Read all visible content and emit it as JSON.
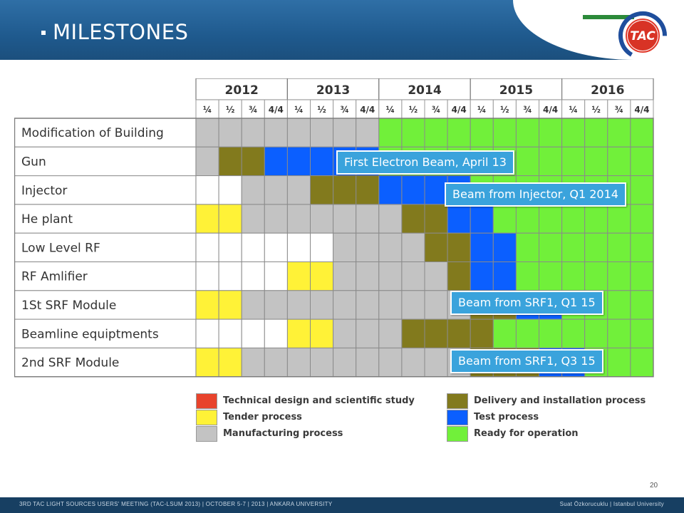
{
  "slide": {
    "title": "MILESTONES",
    "page_number": "20",
    "logo_text": "TAC",
    "footer_left": "3RD TAC LIGHT SOURCES USERS' MEETING (TAC-LSUM 2013) | OCTOBER 5-7 | 2013 | ANKARA UNIVERSITY",
    "footer_right": "Suat Özkorucuklu | Istanbul University"
  },
  "colors": {
    "design": "#e8432c",
    "tender": "#fff237",
    "manufacturing": "#c3c3c3",
    "delivery": "#827a1d",
    "test": "#0b5fff",
    "ready": "#71f03a",
    "empty": "#ffffff"
  },
  "chart_data": {
    "type": "table",
    "years": [
      "2012",
      "2013",
      "2014",
      "2015",
      "2016"
    ],
    "quarters": [
      "¼",
      "½",
      "¾",
      "4/4"
    ],
    "rows": [
      {
        "label": "Modification of Building",
        "cells": [
          "M",
          "M",
          "M",
          "M",
          "M",
          "M",
          "M",
          "M",
          "R",
          "R",
          "R",
          "R",
          "R",
          "R",
          "R",
          "R",
          "R",
          "R",
          "R",
          "R"
        ]
      },
      {
        "label": "Gun",
        "cells": [
          "M",
          "D",
          "D",
          "T",
          "T",
          "T",
          "T",
          "T",
          "R",
          "R",
          "R",
          "R",
          "R",
          "R",
          "R",
          "R",
          "R",
          "R",
          "R",
          "R"
        ]
      },
      {
        "label": "Injector",
        "cells": [
          "E",
          "E",
          "M",
          "M",
          "M",
          "D",
          "D",
          "D",
          "T",
          "T",
          "T",
          "T",
          "R",
          "R",
          "R",
          "R",
          "R",
          "R",
          "R",
          "R"
        ]
      },
      {
        "label": "He plant",
        "cells": [
          "Y",
          "Y",
          "M",
          "M",
          "M",
          "M",
          "M",
          "M",
          "M",
          "D",
          "D",
          "T",
          "T",
          "R",
          "R",
          "R",
          "R",
          "R",
          "R",
          "R"
        ]
      },
      {
        "label": "Low Level RF",
        "cells": [
          "E",
          "E",
          "E",
          "E",
          "E",
          "E",
          "M",
          "M",
          "M",
          "M",
          "D",
          "D",
          "T",
          "T",
          "R",
          "R",
          "R",
          "R",
          "R",
          "R"
        ]
      },
      {
        "label": "RF Amlifier",
        "cells": [
          "E",
          "E",
          "E",
          "E",
          "Y",
          "Y",
          "M",
          "M",
          "M",
          "M",
          "M",
          "D",
          "T",
          "T",
          "R",
          "R",
          "R",
          "R",
          "R",
          "R"
        ]
      },
      {
        "label": "1St SRF Module",
        "cells": [
          "Y",
          "Y",
          "M",
          "M",
          "M",
          "M",
          "M",
          "M",
          "M",
          "M",
          "M",
          "M",
          "D",
          "D",
          "T",
          "T",
          "R",
          "R",
          "R",
          "R"
        ]
      },
      {
        "label": "Beamline equiptments",
        "cells": [
          "E",
          "E",
          "E",
          "E",
          "Y",
          "Y",
          "M",
          "M",
          "M",
          "D",
          "D",
          "D",
          "D",
          "R",
          "R",
          "R",
          "R",
          "R",
          "R",
          "R"
        ]
      },
      {
        "label": "2nd SRF Module",
        "cells": [
          "Y",
          "Y",
          "M",
          "M",
          "M",
          "M",
          "M",
          "M",
          "M",
          "M",
          "M",
          "M",
          "D",
          "D",
          "D",
          "T",
          "T",
          "R",
          "R",
          "R"
        ]
      }
    ],
    "legend": [
      {
        "key": "design",
        "text": "Technical design and scientific study"
      },
      {
        "key": "tender",
        "text": "Tender process"
      },
      {
        "key": "manufacturing",
        "text": "Manufacturing process"
      },
      {
        "key": "delivery",
        "text": "Delivery and installation process"
      },
      {
        "key": "test",
        "text": "Test process"
      },
      {
        "key": "ready",
        "text": "Ready for operation"
      }
    ],
    "annotations": [
      "First Electron Beam, April 13",
      "Beam from Injector, Q1 2014",
      "Beam from SRF1, Q1 15",
      "Beam from SRF1, Q3 15"
    ]
  }
}
